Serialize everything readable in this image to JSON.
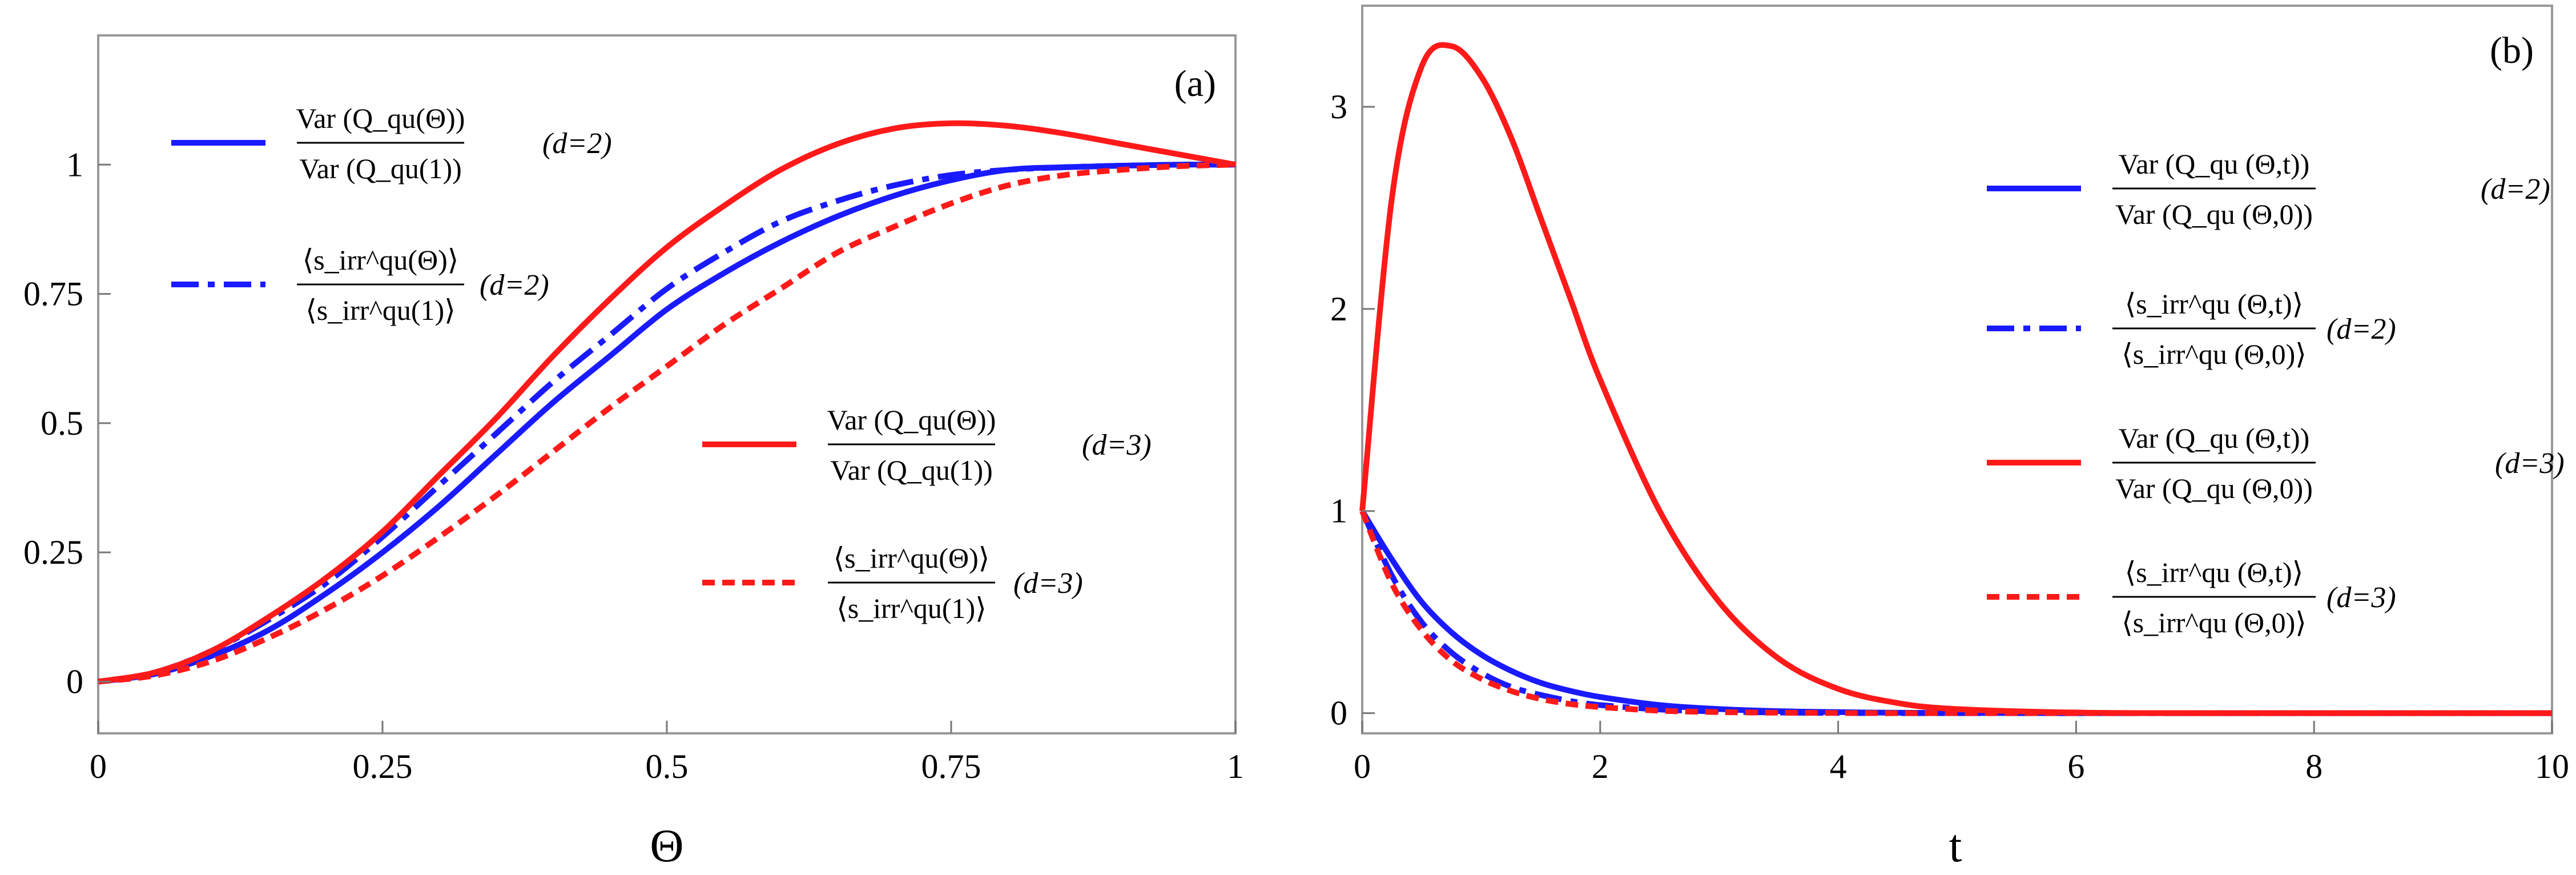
{
  "chart_data": [
    {
      "type": "line",
      "panel_label": "(a)",
      "xlabel": "Θ",
      "ylabel": "",
      "xlim": [
        0,
        1
      ],
      "ylim": [
        -0.1,
        1.25
      ],
      "xticks": [
        0,
        0.25,
        0.5,
        0.75,
        1
      ],
      "xtick_labels": [
        "0",
        "0.25",
        "0.5",
        "0.75",
        "1"
      ],
      "yticks": [
        0,
        0.25,
        0.5,
        0.75,
        1
      ],
      "ytick_labels": [
        "0",
        "0.25",
        "0.5",
        "0.75",
        "1"
      ],
      "grid": false,
      "legend_position": "left and right inside plot",
      "x": [
        0,
        0.05,
        0.1,
        0.15,
        0.2,
        0.25,
        0.3,
        0.35,
        0.4,
        0.45,
        0.5,
        0.55,
        0.6,
        0.65,
        0.7,
        0.75,
        0.8,
        0.85,
        0.9,
        0.95,
        1
      ],
      "series": [
        {
          "name_num": "Var (Q_qu(Θ))",
          "name_den": "Var (Q_qu(1))",
          "name_suffix": "(d=2)",
          "color": "#1a1aff",
          "dash": "solid",
          "values": [
            0,
            0.015,
            0.05,
            0.1,
            0.17,
            0.25,
            0.34,
            0.44,
            0.54,
            0.63,
            0.72,
            0.79,
            0.85,
            0.9,
            0.94,
            0.97,
            0.99,
            0.995,
            0.998,
            1.0,
            1.0
          ]
        },
        {
          "name_num": "⟨s_irr^qu(Θ)⟩",
          "name_den": "⟨s_irr^qu(1)⟩",
          "name_suffix": "(d=2)",
          "color": "#1a1aff",
          "dash": "dashdot",
          "values": [
            0,
            0.018,
            0.06,
            0.12,
            0.19,
            0.28,
            0.38,
            0.48,
            0.58,
            0.67,
            0.76,
            0.83,
            0.89,
            0.93,
            0.96,
            0.98,
            0.99,
            0.995,
            0.998,
            1.0,
            1.0
          ]
        },
        {
          "name_num": "Var (Q_qu(Θ))",
          "name_den": "Var (Q_qu(1))",
          "name_suffix": "(d=3)",
          "color": "#ff1a1a",
          "dash": "solid",
          "values": [
            0,
            0.018,
            0.06,
            0.125,
            0.2,
            0.29,
            0.4,
            0.51,
            0.63,
            0.74,
            0.84,
            0.92,
            0.99,
            1.04,
            1.07,
            1.08,
            1.075,
            1.06,
            1.04,
            1.02,
            1.0
          ]
        },
        {
          "name_num": "⟨s_irr^qu(Θ)⟩",
          "name_den": "⟨s_irr^qu(1)⟩",
          "name_suffix": "(d=3)",
          "color": "#ff1a1a",
          "dash": "dashed",
          "values": [
            0,
            0.012,
            0.04,
            0.085,
            0.14,
            0.205,
            0.28,
            0.36,
            0.445,
            0.53,
            0.61,
            0.69,
            0.76,
            0.83,
            0.88,
            0.925,
            0.96,
            0.98,
            0.99,
            0.997,
            1.0
          ]
        }
      ]
    },
    {
      "type": "line",
      "panel_label": "(b)",
      "xlabel": "t",
      "ylabel": "",
      "xlim": [
        0,
        10
      ],
      "ylim": [
        -0.1,
        3.5
      ],
      "xticks": [
        0,
        2,
        4,
        6,
        8,
        10
      ],
      "xtick_labels": [
        "0",
        "2",
        "4",
        "6",
        "8",
        "10"
      ],
      "yticks": [
        0,
        1,
        2,
        3
      ],
      "ytick_labels": [
        "0",
        "1",
        "2",
        "3"
      ],
      "grid": false,
      "legend_position": "right",
      "x": [
        0,
        0.25,
        0.5,
        0.75,
        1,
        1.25,
        1.5,
        1.75,
        2,
        2.5,
        3,
        3.5,
        4,
        4.5,
        5,
        6,
        7,
        8,
        9,
        10
      ],
      "series": [
        {
          "name_num": "Var (Q_qu (Θ,t))",
          "name_den": "Var (Q_qu (Θ,0))",
          "name_suffix": "(d=2)",
          "color": "#1a1aff",
          "dash": "solid",
          "values": [
            1.0,
            0.76,
            0.55,
            0.4,
            0.29,
            0.21,
            0.15,
            0.11,
            0.08,
            0.04,
            0.02,
            0.01,
            0.005,
            0.002,
            0.001,
            0,
            0,
            0,
            0,
            0
          ]
        },
        {
          "name_num": "⟨s_irr^qu (Θ,t)⟩",
          "name_den": "⟨s_irr^qu (Θ,0)⟩",
          "name_suffix": "(d=2)",
          "color": "#1a1aff",
          "dash": "dashdot",
          "values": [
            1.0,
            0.68,
            0.45,
            0.3,
            0.2,
            0.13,
            0.09,
            0.06,
            0.04,
            0.018,
            0.008,
            0.003,
            0.001,
            0,
            0,
            0,
            0,
            0,
            0,
            0
          ]
        },
        {
          "name_num": "Var (Q_qu (Θ,t))",
          "name_den": "Var (Q_qu (Θ,0))",
          "name_suffix": "(d=3)",
          "color": "#ff1a1a",
          "dash": "solid",
          "values": [
            1.0,
            2.55,
            3.2,
            3.3,
            3.15,
            2.85,
            2.45,
            2.05,
            1.65,
            1.0,
            0.55,
            0.27,
            0.12,
            0.05,
            0.02,
            0.003,
            0,
            0,
            0,
            0
          ]
        },
        {
          "name_num": "⟨s_irr^qu (Θ,t)⟩",
          "name_den": "⟨s_irr^qu (Θ,0)⟩",
          "name_suffix": "(d=3)",
          "color": "#ff1a1a",
          "dash": "dashed",
          "values": [
            1.0,
            0.64,
            0.41,
            0.26,
            0.17,
            0.11,
            0.07,
            0.045,
            0.03,
            0.012,
            0.005,
            0.002,
            0.001,
            0,
            0,
            0,
            0,
            0,
            0,
            0
          ]
        }
      ]
    }
  ]
}
